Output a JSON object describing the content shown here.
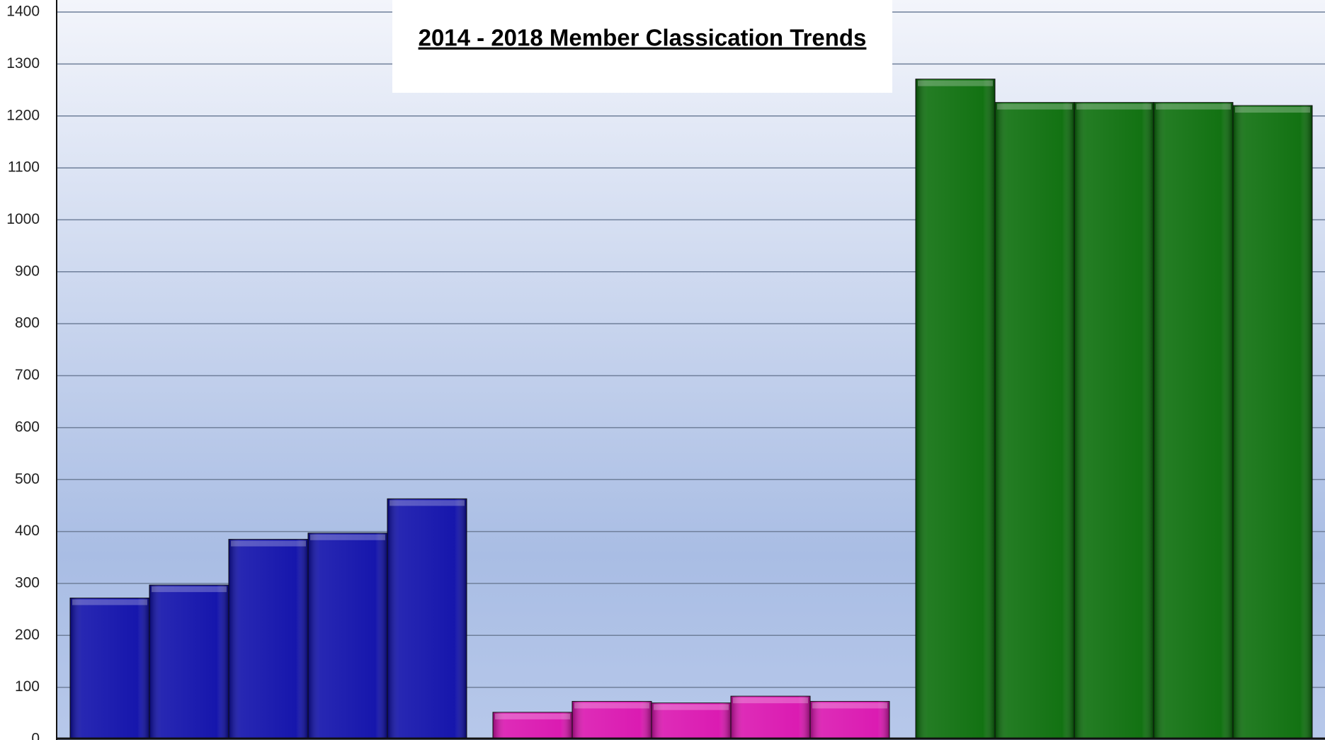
{
  "chart_data": {
    "type": "bar",
    "title": "2014 - 2018 Member Classication Trends",
    "categories": [
      null,
      null,
      null,
      null,
      null
    ],
    "series": [
      {
        "color": "#0a0aa8",
        "values": [
          272,
          297,
          385,
          397,
          463
        ]
      },
      {
        "color": "#d90fae",
        "values": [
          52,
          73,
          70,
          83,
          73
        ]
      },
      {
        "color": "#066b06",
        "values": [
          1271,
          1226,
          1226,
          1226,
          1220
        ]
      }
    ],
    "ylim": [
      0,
      1400
    ],
    "yticks": [
      0,
      100,
      200,
      300,
      400,
      500,
      600,
      700,
      800,
      900,
      1000,
      1100,
      1200,
      1300,
      1400
    ],
    "grid": true
  }
}
